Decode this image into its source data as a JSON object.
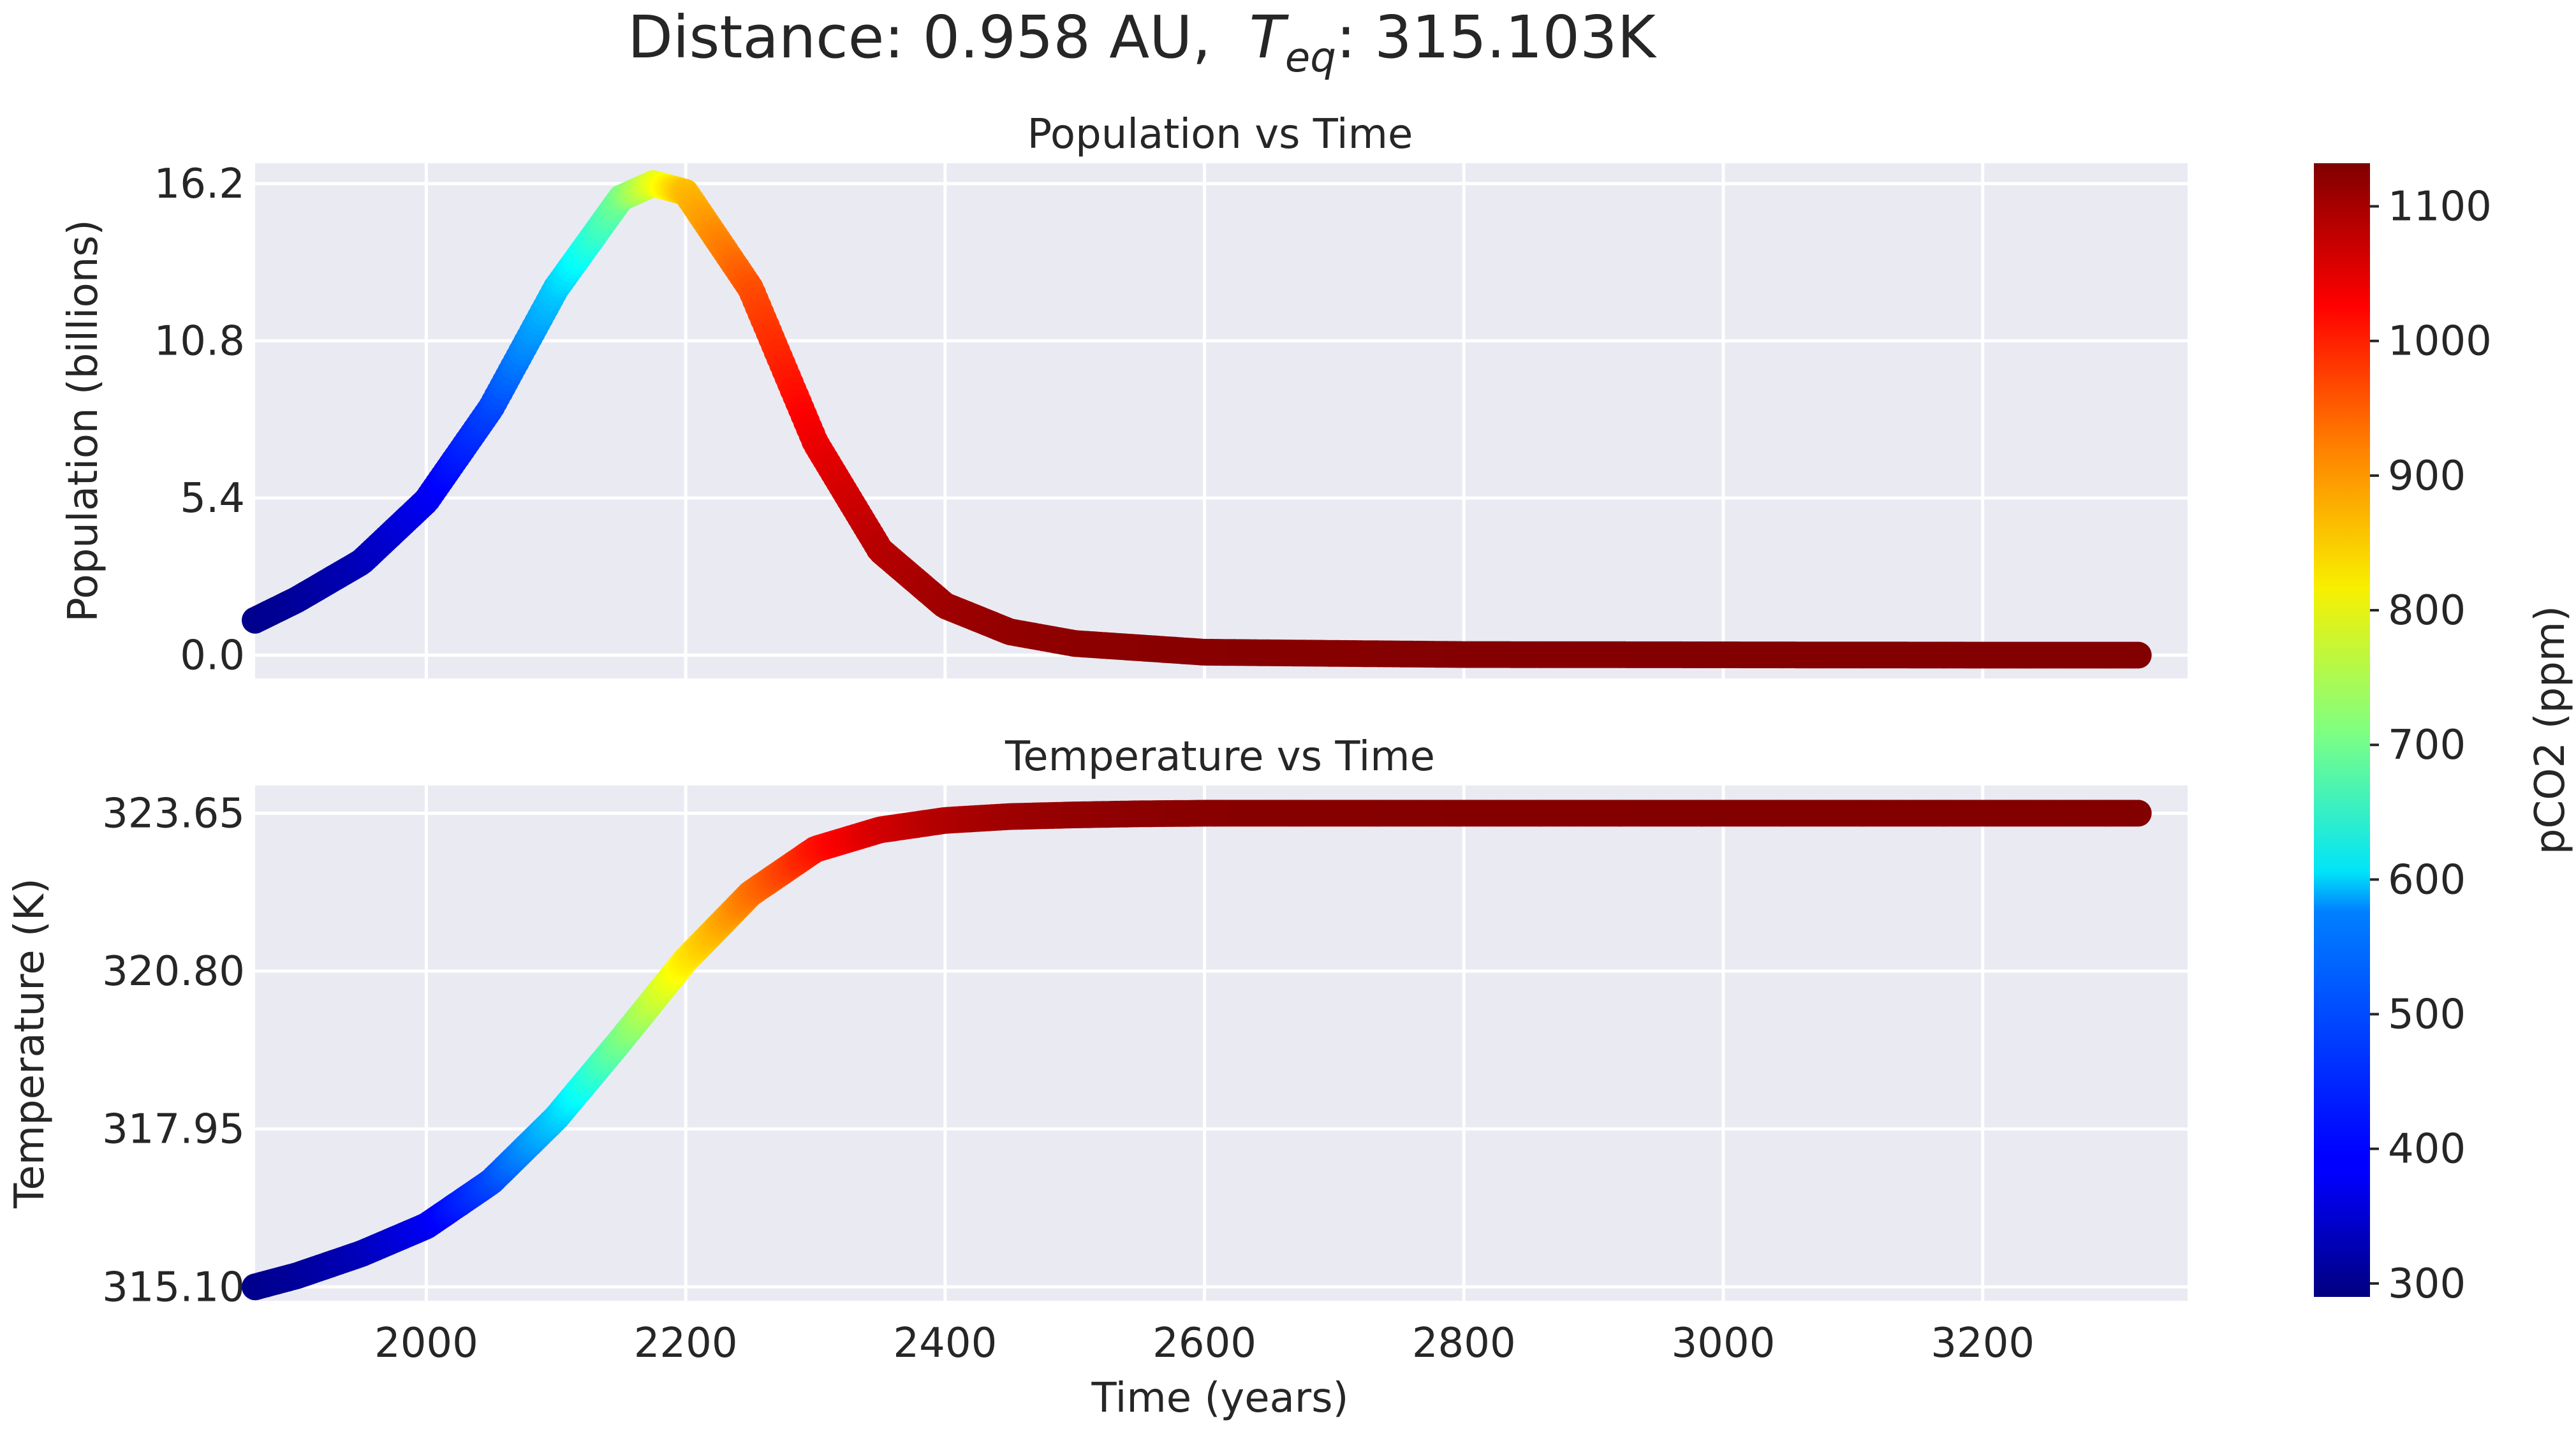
{
  "figure": {
    "title_prefix": "Distance: 0.958 AU,",
    "title_T": "T",
    "title_sub": "eq",
    "title_suffix": ": 315.103K"
  },
  "colors": {
    "background": "#ffffff",
    "axes_face": "#eaeaf2",
    "grid": "#ffffff",
    "text": "#262626",
    "colormap": "jet"
  },
  "chart_data": [
    {
      "type": "scatter",
      "title": "Population vs Time",
      "xlabel": "",
      "ylabel": "Population (billions)",
      "xlim": [
        1868,
        3358
      ],
      "ylim": [
        -0.8,
        16.9
      ],
      "xticks": [
        2000,
        2200,
        2400,
        2600,
        2800,
        3000,
        3200
      ],
      "yticks": [
        0.0,
        5.4,
        10.8,
        16.2
      ],
      "ytick_labels": [
        "0.0",
        "5.4",
        "10.8",
        "16.2"
      ],
      "grid": true,
      "color_by": "pCO2 (ppm)",
      "x": [
        1868,
        1900,
        1950,
        2000,
        2050,
        2100,
        2150,
        2175,
        2200,
        2250,
        2300,
        2350,
        2400,
        2450,
        2500,
        2600,
        2800,
        3000,
        3200,
        3320
      ],
      "y": [
        1.2,
        1.9,
        3.2,
        5.3,
        8.5,
        12.6,
        15.7,
        16.2,
        15.9,
        12.6,
        7.3,
        3.6,
        1.7,
        0.8,
        0.4,
        0.1,
        0.02,
        0.01,
        0.0,
        0.0
      ],
      "c": [
        300,
        310,
        335,
        380,
        450,
        560,
        700,
        790,
        870,
        960,
        1040,
        1085,
        1105,
        1115,
        1120,
        1125,
        1128,
        1129,
        1130,
        1130
      ]
    },
    {
      "type": "scatter",
      "title": "Temperature vs Time",
      "xlabel": "Time (years)",
      "ylabel": "Temperature (K)",
      "xlim": [
        1868,
        3358
      ],
      "ylim": [
        314.85,
        324.15
      ],
      "xticks": [
        2000,
        2200,
        2400,
        2600,
        2800,
        3000,
        3200
      ],
      "yticks": [
        315.1,
        317.95,
        320.8,
        323.65
      ],
      "ytick_labels": [
        "315.10",
        "317.95",
        "320.80",
        "323.65"
      ],
      "grid": true,
      "color_by": "pCO2 (ppm)",
      "x": [
        1868,
        1900,
        1950,
        2000,
        2050,
        2100,
        2150,
        2200,
        2250,
        2300,
        2350,
        2400,
        2450,
        2500,
        2550,
        2600,
        2800,
        3000,
        3200,
        3320
      ],
      "y": [
        315.1,
        315.3,
        315.7,
        316.2,
        317.0,
        318.15,
        319.55,
        321.0,
        322.2,
        323.0,
        323.35,
        323.52,
        323.59,
        323.62,
        323.64,
        323.65,
        323.65,
        323.65,
        323.65,
        323.65
      ],
      "c": [
        300,
        310,
        335,
        380,
        450,
        560,
        700,
        830,
        930,
        1010,
        1060,
        1090,
        1105,
        1115,
        1120,
        1125,
        1128,
        1129,
        1130,
        1130
      ]
    }
  ],
  "colorbar": {
    "label": "pCO2 (ppm)",
    "range": [
      290,
      1132
    ],
    "ticks": [
      300,
      400,
      500,
      600,
      700,
      800,
      900,
      1000,
      1100
    ],
    "tick_labels": [
      "300",
      "400",
      "500",
      "600",
      "700",
      "800",
      "900",
      "1000",
      "1100"
    ]
  }
}
